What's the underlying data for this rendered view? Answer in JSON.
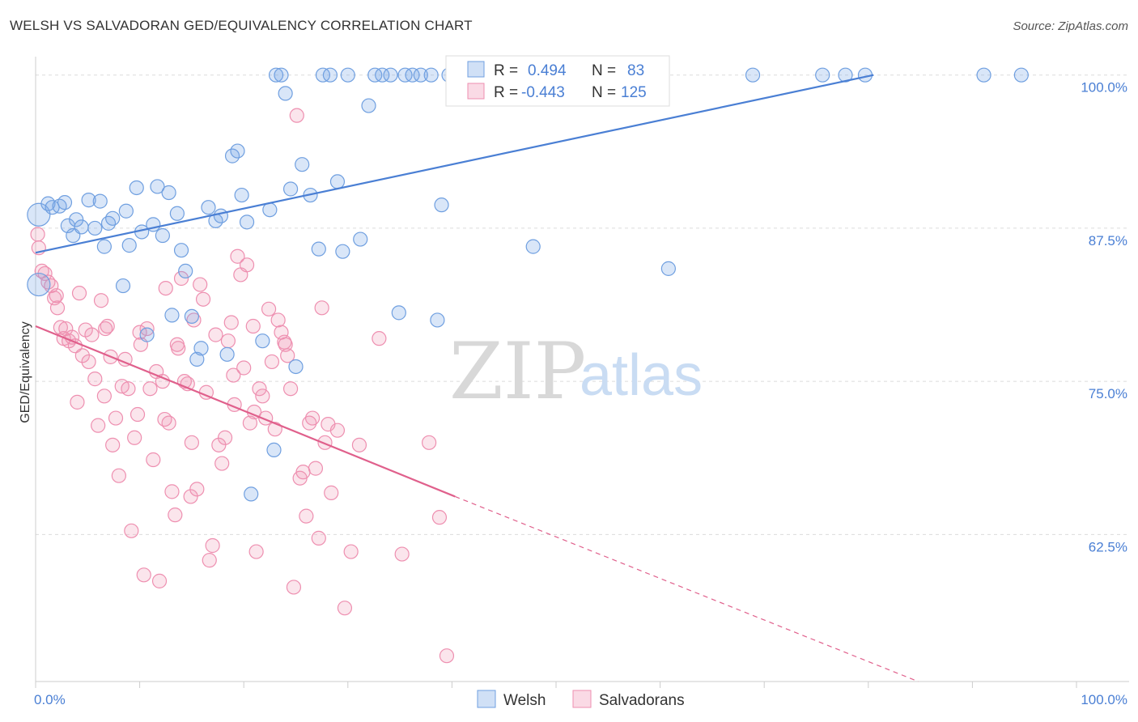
{
  "title": "WELSH VS SALVADORAN GED/EQUIVALENCY CORRELATION CHART",
  "source": "Source: ZipAtlas.com",
  "watermark": {
    "zip": "ZIP",
    "atlas": "atlas"
  },
  "colors": {
    "blue": "#4a7fd4",
    "blue_fill": "rgba(120,165,230,0.28)",
    "blue_stroke": "#6f9fe0",
    "pink": "#e0608c",
    "pink_fill": "rgba(240,150,180,0.25)",
    "pink_stroke": "#ee8fb0"
  },
  "legend": {
    "r_label": "R =",
    "n_label": "N =",
    "welsh": {
      "r": "0.494",
      "n": "83"
    },
    "salvadoran": {
      "r": "-0.443",
      "n": "125"
    }
  },
  "bottom_legend": {
    "welsh": "Welsh",
    "salvadorans": "Salvadorans"
  },
  "chart_data": {
    "type": "scatter",
    "xlabel": "",
    "ylabel": "GED/Equivalency",
    "xlim": [
      0,
      100
    ],
    "ylim": [
      50.5,
      101.5
    ],
    "x_tick_labels": [
      {
        "value": 0,
        "label": "0.0%"
      },
      {
        "value": 100,
        "label": "100.0%"
      }
    ],
    "y_tick_labels": [
      {
        "value": 100,
        "label": "100.0%"
      },
      {
        "value": 87.5,
        "label": "87.5%"
      },
      {
        "value": 75,
        "label": "75.0%"
      },
      {
        "value": 62.5,
        "label": "62.5%"
      }
    ],
    "grid": true,
    "series": [
      {
        "name": "Welsh",
        "color": "#4a7fd4",
        "trendline": {
          "x": [
            0,
            80.5
          ],
          "y": [
            85.5,
            100
          ]
        },
        "points": [
          [
            0.3,
            88.6
          ],
          [
            0.3,
            82.9
          ],
          [
            1.2,
            89.5
          ],
          [
            1.6,
            89.2
          ],
          [
            2.3,
            89.3
          ],
          [
            2.8,
            89.6
          ],
          [
            3.1,
            87.7
          ],
          [
            3.6,
            86.9
          ],
          [
            3.9,
            88.2
          ],
          [
            4.4,
            87.6
          ],
          [
            5.1,
            89.8
          ],
          [
            5.7,
            87.5
          ],
          [
            6.2,
            89.7
          ],
          [
            6.6,
            86.0
          ],
          [
            7.0,
            87.9
          ],
          [
            7.4,
            88.3
          ],
          [
            8.4,
            82.8
          ],
          [
            8.7,
            88.9
          ],
          [
            9.0,
            86.1
          ],
          [
            9.7,
            90.8
          ],
          [
            10.2,
            87.2
          ],
          [
            10.7,
            78.8
          ],
          [
            11.3,
            87.8
          ],
          [
            11.7,
            90.9
          ],
          [
            12.2,
            86.9
          ],
          [
            12.8,
            90.4
          ],
          [
            13.1,
            80.4
          ],
          [
            13.6,
            88.7
          ],
          [
            14.0,
            85.7
          ],
          [
            14.4,
            84.0
          ],
          [
            15.0,
            80.3
          ],
          [
            15.5,
            76.8
          ],
          [
            15.9,
            77.7
          ],
          [
            16.6,
            89.2
          ],
          [
            17.3,
            88.1
          ],
          [
            17.8,
            88.5
          ],
          [
            18.4,
            77.2
          ],
          [
            18.9,
            93.4
          ],
          [
            19.4,
            93.8
          ],
          [
            19.8,
            90.2
          ],
          [
            20.3,
            88.0
          ],
          [
            20.7,
            65.8
          ],
          [
            21.8,
            78.3
          ],
          [
            22.5,
            89.0
          ],
          [
            22.9,
            69.4
          ],
          [
            23.1,
            100
          ],
          [
            23.6,
            100
          ],
          [
            24.0,
            98.5
          ],
          [
            24.5,
            90.7
          ],
          [
            25.0,
            76.2
          ],
          [
            25.6,
            92.7
          ],
          [
            26.4,
            90.2
          ],
          [
            27.2,
            85.8
          ],
          [
            27.6,
            100
          ],
          [
            28.3,
            100
          ],
          [
            29.0,
            91.3
          ],
          [
            29.5,
            85.6
          ],
          [
            30.0,
            100
          ],
          [
            31.2,
            86.6
          ],
          [
            32.0,
            97.5
          ],
          [
            32.6,
            100
          ],
          [
            33.3,
            100
          ],
          [
            34.1,
            100
          ],
          [
            34.9,
            80.6
          ],
          [
            35.5,
            100
          ],
          [
            36.2,
            100
          ],
          [
            37.0,
            100
          ],
          [
            38.0,
            100
          ],
          [
            38.6,
            80.0
          ],
          [
            39.0,
            89.4
          ],
          [
            39.7,
            100
          ],
          [
            40.6,
            100
          ],
          [
            41.8,
            100
          ],
          [
            43.0,
            100
          ],
          [
            45.6,
            100
          ],
          [
            47.0,
            100
          ],
          [
            47.8,
            86.0
          ],
          [
            54.5,
            100
          ],
          [
            60.8,
            84.2
          ],
          [
            68.9,
            100
          ],
          [
            75.6,
            100
          ],
          [
            77.8,
            100
          ],
          [
            79.7,
            100
          ],
          [
            91.1,
            100
          ],
          [
            94.7,
            100
          ]
        ]
      },
      {
        "name": "Salvadorans",
        "color": "#e0608c",
        "trendline": {
          "x": [
            0,
            40.3
          ],
          "y": [
            79.5,
            65.6
          ]
        },
        "trendline_dashed": {
          "x": [
            40.3,
            84.8
          ],
          "y": [
            65.6,
            50.5
          ]
        },
        "points": [
          [
            0.2,
            87.0
          ],
          [
            0.3,
            85.9
          ],
          [
            0.6,
            84.0
          ],
          [
            0.9,
            83.8
          ],
          [
            1.2,
            83.1
          ],
          [
            1.5,
            82.8
          ],
          [
            1.8,
            81.8
          ],
          [
            2.1,
            81.0
          ],
          [
            2.4,
            79.4
          ],
          [
            2.7,
            78.5
          ],
          [
            2.9,
            79.3
          ],
          [
            3.2,
            78.3
          ],
          [
            3.5,
            78.6
          ],
          [
            3.8,
            77.9
          ],
          [
            4.0,
            73.3
          ],
          [
            4.2,
            82.2
          ],
          [
            4.5,
            77.1
          ],
          [
            4.8,
            79.2
          ],
          [
            5.1,
            76.6
          ],
          [
            5.4,
            78.8
          ],
          [
            5.7,
            75.2
          ],
          [
            6.0,
            71.4
          ],
          [
            6.3,
            81.6
          ],
          [
            6.6,
            73.8
          ],
          [
            6.9,
            79.5
          ],
          [
            7.2,
            77.0
          ],
          [
            7.4,
            69.8
          ],
          [
            7.7,
            72.0
          ],
          [
            8.0,
            67.3
          ],
          [
            8.3,
            74.6
          ],
          [
            8.6,
            76.8
          ],
          [
            8.9,
            74.4
          ],
          [
            9.2,
            62.8
          ],
          [
            9.5,
            70.4
          ],
          [
            9.8,
            72.3
          ],
          [
            10.1,
            78.0
          ],
          [
            10.4,
            59.2
          ],
          [
            10.7,
            79.3
          ],
          [
            11.0,
            74.4
          ],
          [
            11.3,
            68.6
          ],
          [
            11.6,
            75.8
          ],
          [
            11.9,
            58.7
          ],
          [
            12.2,
            75.0
          ],
          [
            12.5,
            82.6
          ],
          [
            12.8,
            71.6
          ],
          [
            13.1,
            66.0
          ],
          [
            13.4,
            64.1
          ],
          [
            13.7,
            77.7
          ],
          [
            14.0,
            83.4
          ],
          [
            14.3,
            75.0
          ],
          [
            14.6,
            74.8
          ],
          [
            14.9,
            65.6
          ],
          [
            15.2,
            80.0
          ],
          [
            15.5,
            66.2
          ],
          [
            15.8,
            82.9
          ],
          [
            16.1,
            81.7
          ],
          [
            16.4,
            74.1
          ],
          [
            16.7,
            60.4
          ],
          [
            17.0,
            61.6
          ],
          [
            17.3,
            78.8
          ],
          [
            17.6,
            69.8
          ],
          [
            17.9,
            68.3
          ],
          [
            18.2,
            70.4
          ],
          [
            18.5,
            78.3
          ],
          [
            18.8,
            79.8
          ],
          [
            19.1,
            73.1
          ],
          [
            19.4,
            85.2
          ],
          [
            19.7,
            83.7
          ],
          [
            20.0,
            76.1
          ],
          [
            20.3,
            84.5
          ],
          [
            20.6,
            71.6
          ],
          [
            20.9,
            79.5
          ],
          [
            21.2,
            61.1
          ],
          [
            21.5,
            74.4
          ],
          [
            21.8,
            73.8
          ],
          [
            22.1,
            72.0
          ],
          [
            22.4,
            80.9
          ],
          [
            22.7,
            76.6
          ],
          [
            23.0,
            71.1
          ],
          [
            23.3,
            80.0
          ],
          [
            23.6,
            79.0
          ],
          [
            23.9,
            78.2
          ],
          [
            24.2,
            77.1
          ],
          [
            24.5,
            74.4
          ],
          [
            24.8,
            58.2
          ],
          [
            25.1,
            96.7
          ],
          [
            25.4,
            67.1
          ],
          [
            25.7,
            67.6
          ],
          [
            26.0,
            64.0
          ],
          [
            26.3,
            71.6
          ],
          [
            26.6,
            72.0
          ],
          [
            26.9,
            67.9
          ],
          [
            27.2,
            62.2
          ],
          [
            27.5,
            81.0
          ],
          [
            27.8,
            70.0
          ],
          [
            28.1,
            71.5
          ],
          [
            28.4,
            65.9
          ],
          [
            29.0,
            71.0
          ],
          [
            29.7,
            56.5
          ],
          [
            30.3,
            61.1
          ],
          [
            31.1,
            69.8
          ],
          [
            33.0,
            78.5
          ],
          [
            35.2,
            60.9
          ],
          [
            37.8,
            70.0
          ],
          [
            38.8,
            63.9
          ],
          [
            39.5,
            52.6
          ],
          [
            2.0,
            82.0
          ],
          [
            6.7,
            79.3
          ],
          [
            12.4,
            71.9
          ],
          [
            13.6,
            78.0
          ],
          [
            19.0,
            75.5
          ],
          [
            21.0,
            72.5
          ],
          [
            24.0,
            78.0
          ],
          [
            15.0,
            70.0
          ],
          [
            10.0,
            79.0
          ]
        ]
      }
    ]
  }
}
